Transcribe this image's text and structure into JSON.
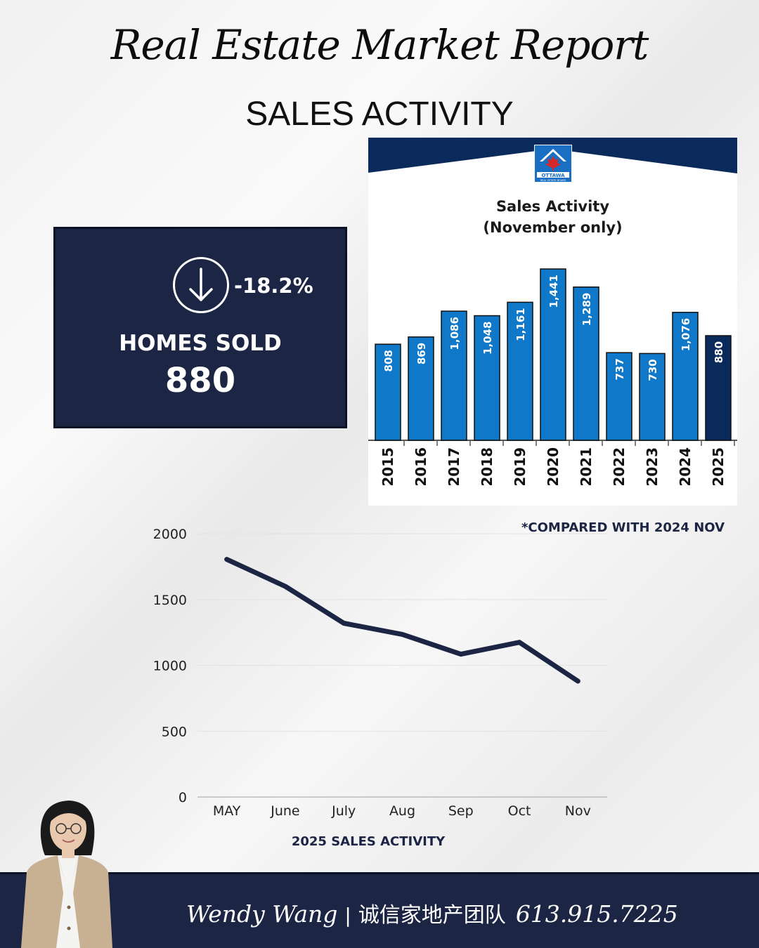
{
  "header": {
    "title": "Real Estate Market Report",
    "subtitle": "SALES ACTIVITY"
  },
  "stat_card": {
    "change": "-18.2%",
    "label": "HOMES SOLD",
    "value": "880",
    "icon": "arrow-down-circle-icon"
  },
  "logo": {
    "text": "OTTAWA",
    "subtext": "REAL ESTATE BOARD"
  },
  "note": "*COMPARED WITH 2024 NOV",
  "line_caption": "2025 SALES ACTIVITY",
  "footer": {
    "name": "Wendy Wang",
    "separator": "|",
    "team": "诚信家地产团队",
    "phone": "613.915.7225"
  },
  "colors": {
    "navy": "#1c2644",
    "bar_blue": "#0f78c8",
    "bar_highlight": "#0b2a5c",
    "line": "#1c2644"
  },
  "chart_data": [
    {
      "type": "bar",
      "title": "Sales Activity",
      "subtitle": "(November only)",
      "categories": [
        "2015",
        "2016",
        "2017",
        "2018",
        "2019",
        "2020",
        "2021",
        "2022",
        "2023",
        "2024",
        "2025"
      ],
      "values": [
        808,
        869,
        1086,
        1048,
        1161,
        1441,
        1289,
        737,
        730,
        1076,
        880
      ],
      "value_labels": [
        "808",
        "869",
        "1,086",
        "1,048",
        "1,161",
        "1,441",
        "1,289",
        "737",
        "730",
        "1,076",
        "880"
      ],
      "highlight_index": 10,
      "ylim": [
        0,
        1441
      ]
    },
    {
      "type": "line",
      "title": "2025 SALES ACTIVITY",
      "categories": [
        "MAY",
        "June",
        "July",
        "Aug",
        "Sep",
        "Oct",
        "Nov"
      ],
      "values": [
        1805,
        1600,
        1320,
        1235,
        1085,
        1175,
        880
      ],
      "ylim": [
        0,
        2000
      ],
      "yticks": [
        0,
        500,
        1000,
        1500,
        2000
      ],
      "grid": true
    }
  ]
}
